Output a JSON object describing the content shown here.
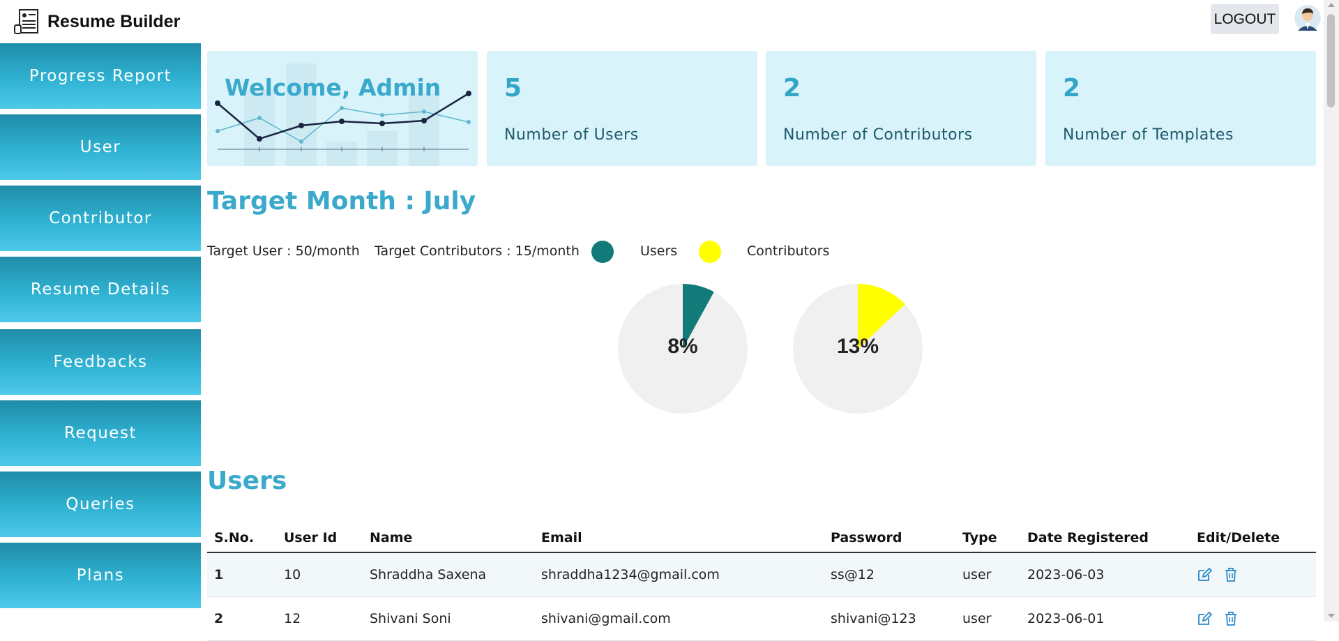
{
  "header": {
    "app_title": "Resume Builder",
    "logout_label": "LOGOUT"
  },
  "sidebar": {
    "items": [
      {
        "label": "Progress Report"
      },
      {
        "label": "User"
      },
      {
        "label": "Contributor"
      },
      {
        "label": "Resume Details"
      },
      {
        "label": "Feedbacks"
      },
      {
        "label": "Request"
      },
      {
        "label": "Queries"
      },
      {
        "label": "Plans"
      }
    ]
  },
  "cards": {
    "welcome": "Welcome, Admin",
    "users": {
      "value": "5",
      "label": "Number of Users"
    },
    "contributors": {
      "value": "2",
      "label": "Number of Contributors"
    },
    "templates": {
      "value": "2",
      "label": "Number of Templates"
    }
  },
  "target": {
    "title": "Target Month : July",
    "target_user": "Target User : 50/month",
    "target_contributors": "Target Contributors : 15/month",
    "legend_users": "Users",
    "legend_contributors": "Contributors",
    "users_pct_label": "8%",
    "contributors_pct_label": "13%",
    "users_fraction": 0.08,
    "contributors_fraction": 0.13,
    "users_color": "#137a7a",
    "contributors_color": "#ffff00",
    "pie_bg_color": "#f0f0f0"
  },
  "users_section": {
    "title": "Users",
    "columns": [
      "S.No.",
      "User Id",
      "Name",
      "Email",
      "Password",
      "Type",
      "Date Registered",
      "Edit/Delete"
    ],
    "rows": [
      {
        "sno": "1",
        "user_id": "10",
        "name": "Shraddha Saxena",
        "email": "shraddha1234@gmail.com",
        "password": "ss@12",
        "type": "user",
        "date": "2023-06-03"
      },
      {
        "sno": "2",
        "user_id": "12",
        "name": "Shivani Soni",
        "email": "shivani@gmail.com",
        "password": "shivani@123",
        "type": "user",
        "date": "2023-06-01"
      }
    ]
  },
  "icons": {
    "logo": "resume-document-icon",
    "avatar": "user-avatar-icon",
    "edit": "edit-icon",
    "delete": "trash-icon"
  },
  "colors": {
    "accent": "#3aa9cc",
    "card_bg": "#d8f3fa",
    "sidebar_top": "#1f8ca8",
    "sidebar_bottom": "#4fc9ea"
  }
}
